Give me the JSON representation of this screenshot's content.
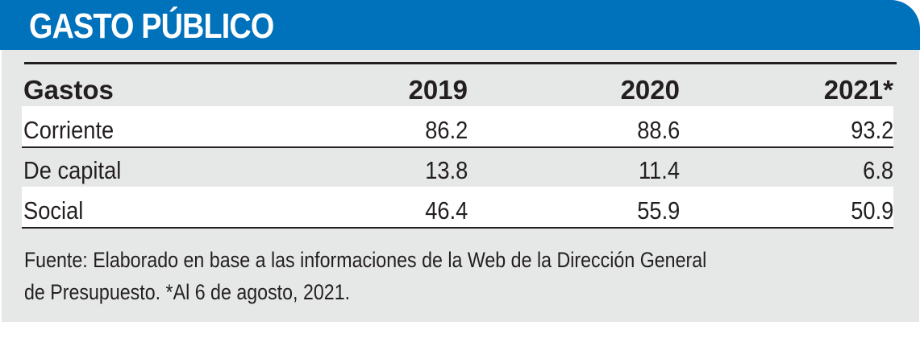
{
  "title": "GASTO PÚBLICO",
  "colors": {
    "header_blue": "#0071bb",
    "panel_grey": "#e6e8e7",
    "text": "#231f20"
  },
  "table": {
    "headers": [
      "Gastos",
      "2019",
      "2020",
      "2021*"
    ],
    "rows": [
      {
        "label": "Corriente",
        "values": [
          "86.2",
          "88.6",
          "93.2"
        ]
      },
      {
        "label": "De capital",
        "values": [
          "13.8",
          "11.4",
          "6.8"
        ]
      },
      {
        "label": "Social",
        "values": [
          "46.4",
          "55.9",
          "50.9"
        ]
      }
    ]
  },
  "footer": {
    "line1": "Fuente: Elaborado en base a las informaciones de la Web de la Dirección General",
    "line2": "de Presupuesto. *Al 6 de agosto, 2021."
  }
}
